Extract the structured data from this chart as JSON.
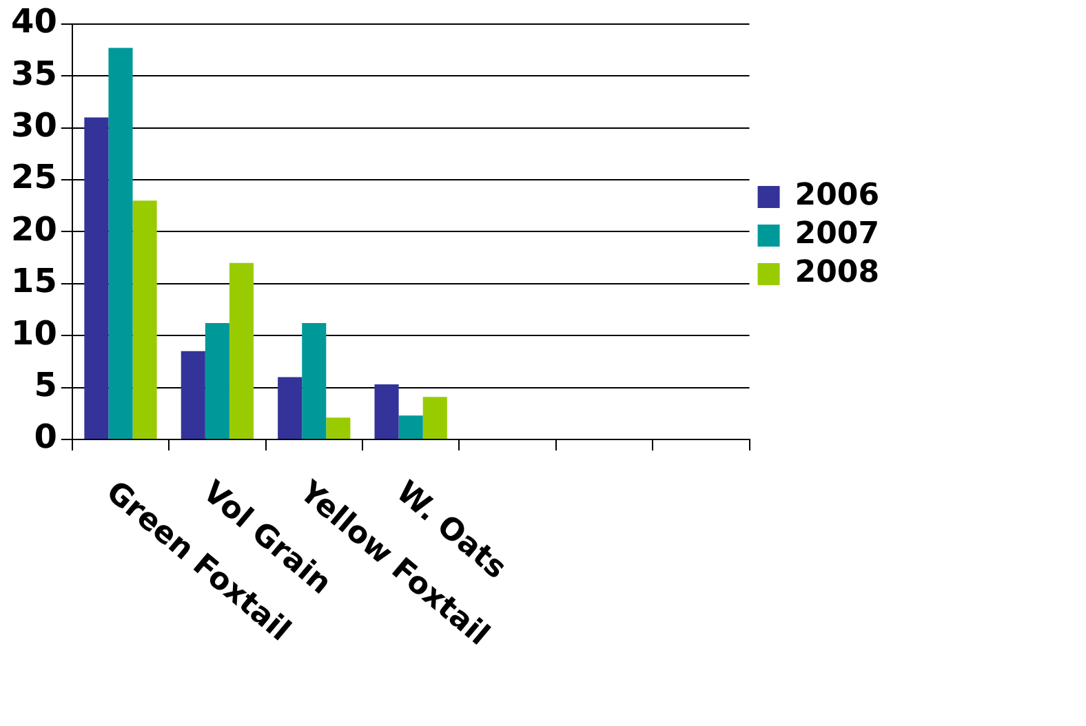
{
  "chart_data": {
    "type": "bar",
    "categories": [
      "Green Foxtail",
      "Vol Grain",
      "Yellow Foxtail",
      "W. Oats",
      null,
      null,
      null
    ],
    "series": [
      {
        "name": "2006",
        "color": "#333399",
        "values": [
          31,
          8.5,
          6,
          5.3,
          null,
          null,
          null
        ]
      },
      {
        "name": "2007",
        "color": "#009999",
        "values": [
          37.7,
          11.2,
          11.2,
          2.3,
          null,
          null,
          null
        ]
      },
      {
        "name": "2008",
        "color": "#99cc00",
        "values": [
          23,
          17,
          2.1,
          4.1,
          null,
          null,
          null
        ]
      }
    ],
    "ylim": [
      0,
      40
    ],
    "yticks": [
      0,
      5,
      10,
      15,
      20,
      25,
      30,
      35,
      40
    ],
    "grid": "y",
    "legend": "right"
  }
}
